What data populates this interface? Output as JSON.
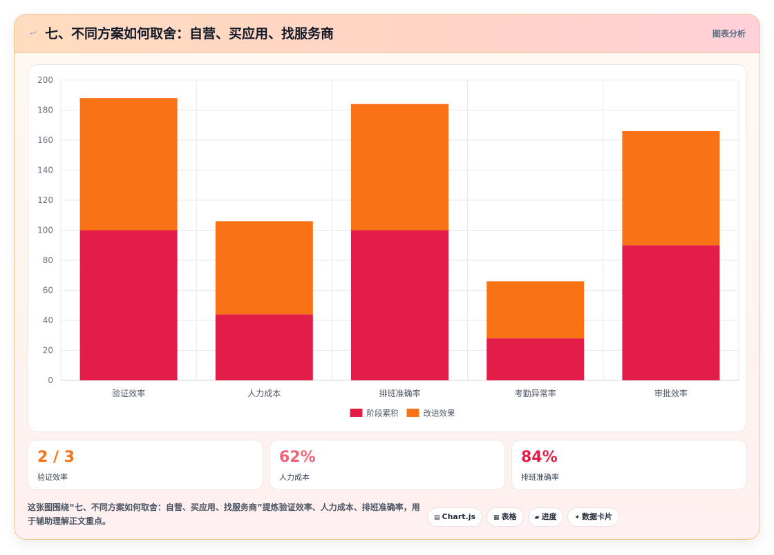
{
  "header": {
    "icon": "lightning-icon",
    "title": "七、不同方案如何取舍：自营、买应用、找服务商",
    "tag": "图表分析"
  },
  "chart_data": {
    "type": "bar",
    "stacked": true,
    "categories": [
      "验证效率",
      "人力成本",
      "排班准确率",
      "考勤异常率",
      "审批效率"
    ],
    "series": [
      {
        "name": "阶段累积",
        "color": "#e11d48",
        "values": [
          100,
          44,
          100,
          28,
          90
        ]
      },
      {
        "name": "改进效果",
        "color": "#f97316",
        "values": [
          88,
          62,
          84,
          38,
          76
        ]
      }
    ],
    "ylim": [
      0,
      200
    ],
    "yticks": [
      0,
      20,
      40,
      60,
      80,
      100,
      120,
      140,
      160,
      180,
      200
    ],
    "grid": true,
    "legend_position": "bottom"
  },
  "stats": [
    {
      "value": "2 / 3",
      "label": "验证效率",
      "color": "#f97316"
    },
    {
      "value": "62%",
      "label": "人力成本",
      "color": "#f06277"
    },
    {
      "value": "84%",
      "label": "排班准确率",
      "color": "#e11d48"
    }
  ],
  "footer": {
    "description": "这张图围绕“七、不同方案如何取舍：自营、买应用、找服务商”提炼验证效率、人力成本、排班准确率，用于辅助理解正文重点。",
    "chips": [
      {
        "icon": "chart-icon",
        "glyph": "▤",
        "label": "Chart.js"
      },
      {
        "icon": "table-icon",
        "glyph": "▦",
        "label": "表格"
      },
      {
        "icon": "progress-icon",
        "glyph": "▰",
        "label": "进度"
      },
      {
        "icon": "card-icon",
        "glyph": "✦",
        "label": "数据卡片"
      }
    ]
  }
}
